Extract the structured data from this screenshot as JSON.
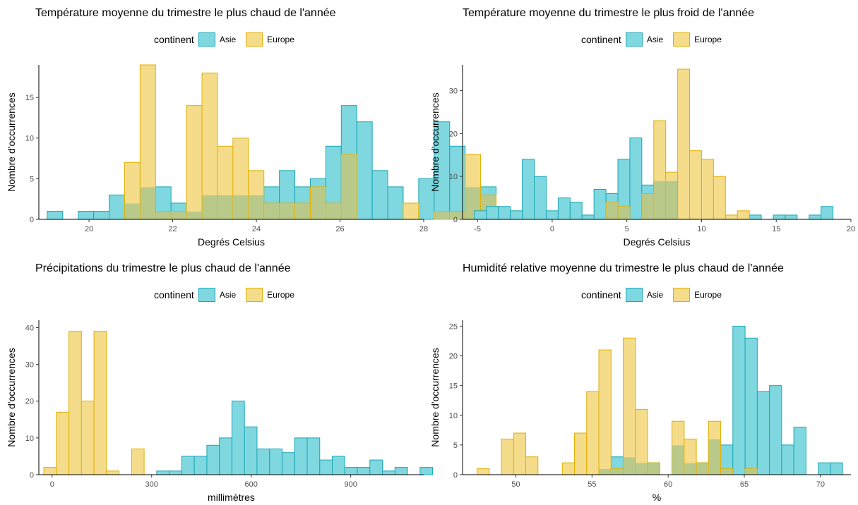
{
  "legend": {
    "title": "continent",
    "asia": "Asie",
    "europe": "Europe"
  },
  "colors": {
    "asia_fill": "#7fd8e0",
    "asia_stroke": "#1aa7b5",
    "europe_fill": "#f4dc8a",
    "europe_stroke": "#e0b000",
    "overlap_fill": "#b9c98a"
  },
  "chart_data": [
    {
      "type": "bar",
      "title": "Température moyenne du trimestre le plus chaud de l'année",
      "xlabel": "Degrés Celsius",
      "ylabel": "Nombre d'occurrences",
      "xlim": [
        18.8,
        28
      ],
      "ylim": [
        0,
        19
      ],
      "xticks": [
        20,
        22,
        24,
        26,
        28
      ],
      "yticks": [
        0,
        5,
        10,
        15
      ],
      "bin_start": 19.0,
      "bin_width": 0.37,
      "series": [
        {
          "name": "Asie",
          "values": [
            1,
            0,
            1,
            1,
            3,
            2,
            4,
            4,
            2,
            1,
            3,
            3,
            3,
            3,
            4,
            6,
            4,
            5,
            9,
            14,
            12,
            6,
            4,
            0,
            5,
            12,
            9,
            4,
            4
          ]
        },
        {
          "name": "Europe",
          "values": [
            0,
            0,
            0,
            0,
            0,
            7,
            19,
            1,
            1,
            14,
            18,
            9,
            10,
            6,
            2,
            2,
            2,
            4,
            2,
            8,
            0,
            0,
            0,
            2,
            0,
            1,
            1,
            8,
            3
          ]
        }
      ]
    },
    {
      "type": "bar",
      "title": "Température moyenne du trimestre le plus froid de l'année",
      "xlabel": "Degrés Celsius",
      "ylabel": "Nombre d'occurrences",
      "xlim": [
        -6,
        20
      ],
      "ylim": [
        0,
        36
      ],
      "xticks": [
        -5,
        0,
        5,
        10,
        15,
        20
      ],
      "yticks": [
        0,
        10,
        20,
        30
      ],
      "bin_start": -5.2,
      "bin_width": 0.8,
      "series": [
        {
          "name": "Asie",
          "values": [
            2,
            3,
            3,
            2,
            14,
            10,
            2,
            5,
            4,
            1,
            7,
            6,
            14,
            19,
            8,
            9,
            9,
            0,
            0,
            0,
            0,
            0,
            0,
            1,
            0,
            1,
            1,
            0,
            1,
            3
          ]
        },
        {
          "name": "Europe",
          "values": [
            0,
            0,
            0,
            0,
            0,
            0,
            0,
            0,
            0,
            0,
            0,
            4,
            3,
            0,
            6,
            23,
            11,
            35,
            16,
            14,
            10,
            1,
            2,
            0,
            0,
            0,
            0,
            0,
            0,
            0
          ]
        }
      ]
    },
    {
      "type": "bar",
      "title": "Précipitations du trimestre le plus chaud de l'année",
      "xlabel": "millimètres",
      "ylabel": "Nombre d'occurrences",
      "xlim": [
        -40,
        1120
      ],
      "ylim": [
        0,
        42
      ],
      "xticks": [
        0,
        300,
        600,
        900
      ],
      "yticks": [
        0,
        10,
        20,
        30,
        40
      ],
      "bin_start": -25,
      "bin_width": 37.8,
      "series": [
        {
          "name": "Asie",
          "values": [
            0,
            0,
            0,
            0,
            0,
            0,
            0,
            0,
            0,
            1,
            1,
            5,
            5,
            8,
            10,
            20,
            13,
            7,
            7,
            6,
            10,
            10,
            4,
            5,
            2,
            2,
            4,
            1,
            2,
            0,
            2
          ]
        },
        {
          "name": "Europe",
          "values": [
            2,
            17,
            39,
            20,
            39,
            1,
            0,
            7,
            0,
            0,
            0,
            0,
            0,
            0,
            0,
            0,
            0,
            0,
            0,
            0,
            0,
            0,
            0,
            0,
            0,
            0,
            0,
            0,
            0,
            0,
            0
          ]
        }
      ]
    },
    {
      "type": "bar",
      "title": "Humidité relative moyenne du trimestre le plus chaud de l'année",
      "xlabel": "%",
      "ylabel": "Nombre d'occurrences",
      "xlim": [
        46.5,
        72
      ],
      "ylim": [
        0,
        26
      ],
      "xticks": [
        50,
        55,
        60,
        65,
        70
      ],
      "yticks": [
        0,
        5,
        10,
        15,
        20,
        25
      ],
      "bin_start": 47.45,
      "bin_width": 0.8,
      "series": [
        {
          "name": "Asie",
          "values": [
            0,
            0,
            0,
            0,
            0,
            0,
            0,
            0,
            0,
            0,
            1,
            3,
            3,
            2,
            2,
            0,
            5,
            2,
            2,
            6,
            5,
            25,
            23,
            14,
            15,
            5,
            8,
            0,
            2,
            2
          ]
        },
        {
          "name": "Europe",
          "values": [
            1,
            0,
            6,
            7,
            3,
            0,
            0,
            2,
            7,
            14,
            21,
            1,
            23,
            11,
            2,
            0,
            9,
            6,
            2,
            9,
            1,
            0,
            1,
            0,
            0,
            0,
            0,
            0,
            0,
            0
          ]
        }
      ]
    }
  ]
}
